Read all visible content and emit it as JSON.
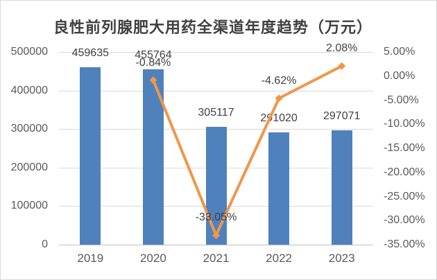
{
  "window": {
    "background": "#FFFFFF",
    "border_color": "#D9D9D9"
  },
  "chart_data": {
    "type": "combo-bar-line",
    "title": "良性前列腺肥大用药全渠道年度趋势（万元）",
    "title_color": "#404040",
    "categories": [
      "2019",
      "2020",
      "2021",
      "2022",
      "2023"
    ],
    "series": [
      {
        "name": "bar-series",
        "type": "bar",
        "axis": "left",
        "color": "#4F81BD",
        "values": [
          459635,
          455764,
          305117,
          291020,
          297071
        ],
        "labels": [
          "459635",
          "455764",
          "305117",
          "291020",
          "297071"
        ]
      },
      {
        "name": "line-series",
        "type": "line",
        "axis": "right",
        "color": "#F0964B",
        "values": [
          null,
          -0.84,
          -33.05,
          -4.62,
          2.08
        ],
        "labels": [
          null,
          "-0.84%",
          "-33.05%",
          "-4.62%",
          "2.08%"
        ]
      }
    ],
    "left_axis": {
      "min": 0,
      "max": 500000,
      "ticks": [
        "500000",
        "400000",
        "300000",
        "200000",
        "100000",
        "0"
      ]
    },
    "right_axis": {
      "min": -35,
      "max": 5,
      "ticks": [
        "5.00%",
        "0.00%",
        "-5.00%",
        "-10.00%",
        "-15.00%",
        "-20.00%",
        "-25.00%",
        "-30.00%",
        "-35.00%"
      ]
    },
    "grid": true,
    "legend": "none",
    "tick_color": "#595959",
    "label_color": "#404040",
    "gridline_color": "#D9D9D9"
  }
}
